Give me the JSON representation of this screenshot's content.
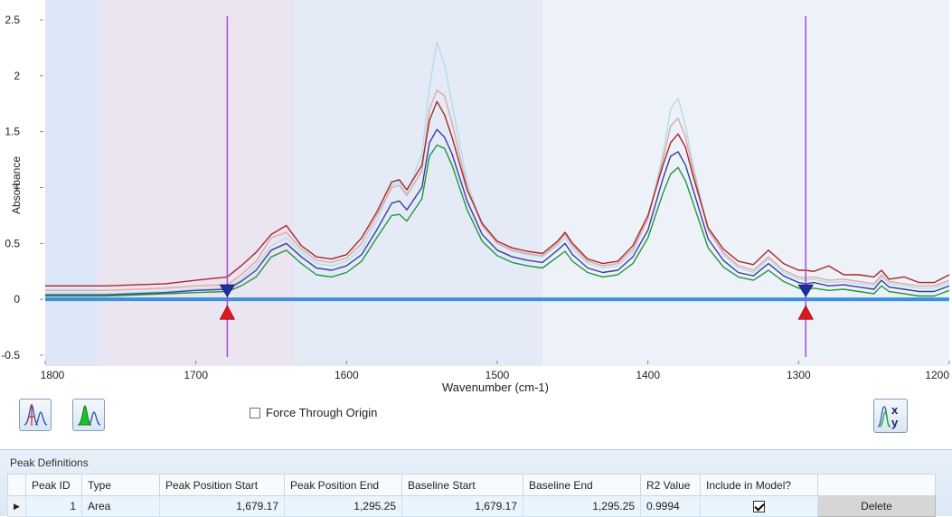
{
  "chart": {
    "ylabel": "Absorbance",
    "xlabel": "Wavenumber (cm-1)",
    "x_ticks": [
      "1800",
      "1700",
      "1600",
      "1500",
      "1400",
      "1300",
      "1200"
    ],
    "y_ticks": [
      "2.5",
      "2",
      "1.5",
      "1",
      "0.5",
      "0",
      "-0.5"
    ]
  },
  "chart_data": {
    "type": "line",
    "xlabel": "Wavenumber (cm-1)",
    "ylabel": "Absorbance",
    "xlim": [
      1800,
      1200
    ],
    "ylim": [
      -0.5,
      2.5
    ],
    "x_reversed": true,
    "x": [
      1800,
      1760,
      1720,
      1700,
      1679.17,
      1670,
      1660,
      1650,
      1640,
      1630,
      1620,
      1610,
      1600,
      1590,
      1580,
      1570,
      1565,
      1560,
      1550,
      1545,
      1540,
      1535,
      1530,
      1520,
      1510,
      1500,
      1490,
      1480,
      1470,
      1460,
      1455,
      1450,
      1440,
      1430,
      1420,
      1410,
      1400,
      1390,
      1385,
      1380,
      1375,
      1370,
      1360,
      1350,
      1340,
      1330,
      1320,
      1310,
      1300,
      1295.25,
      1290,
      1280,
      1270,
      1260,
      1250,
      1245,
      1240,
      1230,
      1220,
      1210,
      1200
    ],
    "series": [
      {
        "color": "#b2dde8",
        "values": [
          0.05,
          0.05,
          0.07,
          0.09,
          0.1,
          0.18,
          0.3,
          0.48,
          0.55,
          0.42,
          0.32,
          0.3,
          0.34,
          0.45,
          0.7,
          1.02,
          1.05,
          0.95,
          1.3,
          1.9,
          2.3,
          2.1,
          1.75,
          1.05,
          0.66,
          0.5,
          0.43,
          0.4,
          0.38,
          0.48,
          0.55,
          0.45,
          0.32,
          0.28,
          0.3,
          0.42,
          0.72,
          1.3,
          1.7,
          1.8,
          1.55,
          1.2,
          0.62,
          0.4,
          0.28,
          0.24,
          0.36,
          0.24,
          0.18,
          0.17,
          0.18,
          0.15,
          0.16,
          0.14,
          0.12,
          0.2,
          0.14,
          0.12,
          0.1,
          0.1,
          0.15
        ]
      },
      {
        "color": "#e0a6a6",
        "values": [
          0.08,
          0.08,
          0.1,
          0.12,
          0.13,
          0.22,
          0.34,
          0.55,
          0.6,
          0.45,
          0.35,
          0.33,
          0.37,
          0.5,
          0.75,
          1.0,
          1.02,
          0.93,
          1.15,
          1.7,
          1.87,
          1.82,
          1.58,
          1.0,
          0.66,
          0.5,
          0.44,
          0.41,
          0.39,
          0.5,
          0.58,
          0.48,
          0.34,
          0.3,
          0.32,
          0.45,
          0.72,
          1.25,
          1.55,
          1.62,
          1.45,
          1.15,
          0.62,
          0.42,
          0.3,
          0.26,
          0.38,
          0.26,
          0.2,
          0.19,
          0.2,
          0.17,
          0.18,
          0.16,
          0.14,
          0.22,
          0.16,
          0.14,
          0.12,
          0.12,
          0.17
        ]
      },
      {
        "color": "#a82828",
        "values": [
          0.12,
          0.12,
          0.14,
          0.17,
          0.2,
          0.3,
          0.42,
          0.58,
          0.66,
          0.48,
          0.38,
          0.36,
          0.4,
          0.55,
          0.78,
          1.05,
          1.07,
          0.98,
          1.2,
          1.6,
          1.77,
          1.65,
          1.45,
          0.98,
          0.68,
          0.52,
          0.46,
          0.43,
          0.41,
          0.52,
          0.6,
          0.5,
          0.36,
          0.32,
          0.34,
          0.48,
          0.75,
          1.2,
          1.4,
          1.48,
          1.36,
          1.1,
          0.64,
          0.45,
          0.34,
          0.31,
          0.44,
          0.32,
          0.26,
          0.26,
          0.25,
          0.3,
          0.22,
          0.22,
          0.2,
          0.26,
          0.18,
          0.2,
          0.15,
          0.15,
          0.22
        ]
      },
      {
        "color": "#3a3f9e",
        "values": [
          0.04,
          0.04,
          0.06,
          0.08,
          0.09,
          0.16,
          0.26,
          0.44,
          0.5,
          0.38,
          0.28,
          0.26,
          0.3,
          0.4,
          0.62,
          0.86,
          0.88,
          0.8,
          1.0,
          1.4,
          1.52,
          1.45,
          1.3,
          0.88,
          0.58,
          0.44,
          0.38,
          0.35,
          0.33,
          0.44,
          0.5,
          0.4,
          0.28,
          0.24,
          0.26,
          0.38,
          0.62,
          1.08,
          1.28,
          1.32,
          1.2,
          0.98,
          0.54,
          0.35,
          0.24,
          0.21,
          0.32,
          0.21,
          0.15,
          0.14,
          0.15,
          0.12,
          0.13,
          0.11,
          0.09,
          0.17,
          0.11,
          0.09,
          0.07,
          0.07,
          0.12
        ]
      },
      {
        "color": "#22973a",
        "values": [
          0.03,
          0.03,
          0.05,
          0.06,
          0.07,
          0.12,
          0.2,
          0.38,
          0.44,
          0.32,
          0.22,
          0.2,
          0.24,
          0.34,
          0.55,
          0.75,
          0.76,
          0.7,
          0.9,
          1.28,
          1.38,
          1.35,
          1.2,
          0.8,
          0.52,
          0.39,
          0.33,
          0.3,
          0.28,
          0.38,
          0.43,
          0.34,
          0.24,
          0.2,
          0.22,
          0.32,
          0.55,
          0.95,
          1.12,
          1.18,
          1.06,
          0.86,
          0.46,
          0.29,
          0.2,
          0.17,
          0.26,
          0.16,
          0.1,
          0.09,
          0.1,
          0.08,
          0.09,
          0.07,
          0.05,
          0.12,
          0.07,
          0.05,
          0.03,
          0.03,
          0.08
        ]
      }
    ],
    "baseline": {
      "color": "#3d8fe0",
      "x": [
        1800,
        1200
      ],
      "y": [
        0,
        0
      ]
    },
    "markers": {
      "color": "#a64dd1",
      "x": [
        1679.17,
        1295.25
      ]
    },
    "shaded_regions": [
      {
        "from": 1800,
        "to": 1765,
        "color": "#dde6f6"
      },
      {
        "from": 1765,
        "to": 1635,
        "color": "#ebe4f1"
      },
      {
        "from": 1635,
        "to": 1470,
        "color": "#e4ebf7"
      },
      {
        "from": 1470,
        "to": 1200,
        "color": "#edf1f8"
      }
    ]
  },
  "toolbar": {
    "peak_button_icon": "peak-markers-icon",
    "area_button_icon": "peak-area-icon",
    "xy_button_icon": "xy-plot-icon"
  },
  "force_origin": {
    "label": "Force Through Origin",
    "checked": false
  },
  "peak_panel": {
    "title": "Peak Definitions",
    "columns": [
      "Peak ID",
      "Type",
      "Peak Position Start",
      "Peak Position End",
      "Baseline Start",
      "Baseline End",
      "R2 Value",
      "Include in Model?"
    ],
    "rows": [
      {
        "peak_id": "1",
        "type": "Area",
        "peak_start": "1,679.17",
        "peak_end": "1,295.25",
        "baseline_start": "1,679.17",
        "baseline_end": "1,295.25",
        "r2": "0.9994",
        "include": true,
        "delete_label": "Delete"
      }
    ],
    "row_indicator": "▶"
  }
}
